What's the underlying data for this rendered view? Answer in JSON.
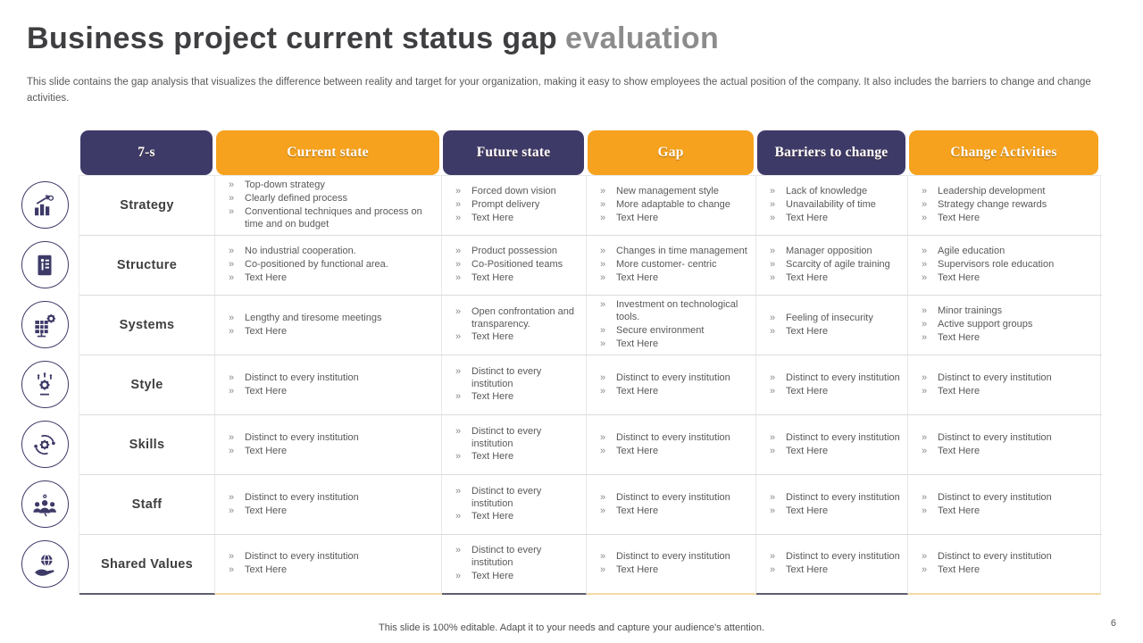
{
  "slide": {
    "title_main": "Business project current status gap",
    "title_accent": "evaluation",
    "subtitle": "This slide contains the gap analysis that visualizes the difference between reality and target for your organization, making it easy to show employees the actual position of the company. It also includes the barriers to change and change activities.",
    "footer": "This slide is 100% editable. Adapt it to your needs and capture your audience's attention.",
    "page_number": "6"
  },
  "colors": {
    "purple": "#3E3A68",
    "orange": "#F6A21E",
    "title": "#3F3F42",
    "title_accent": "#8C8C8C",
    "body_text": "#595959",
    "underline_purple": "#5E5E70",
    "underline_orange": "#F6D9A4"
  },
  "table": {
    "columns": [
      {
        "label": "7-s",
        "tone": "purple"
      },
      {
        "label": "Current state",
        "tone": "orange"
      },
      {
        "label": "Future state",
        "tone": "purple"
      },
      {
        "label": "Gap",
        "tone": "orange"
      },
      {
        "label": "Barriers to change",
        "tone": "purple"
      },
      {
        "label": "Change Activities",
        "tone": "orange"
      }
    ],
    "rows": [
      {
        "label": "Strategy",
        "icon": "growth-chart-icon",
        "cells": [
          [
            "Top-down strategy",
            "Clearly defined process",
            "Conventional techniques and process on time and on budget"
          ],
          [
            "Forced down vision",
            "Prompt delivery",
            "Text Here"
          ],
          [
            "New management style",
            "More adaptable to change",
            "Text Here"
          ],
          [
            "Lack of knowledge",
            "Unavailability of time",
            "Text Here"
          ],
          [
            "Leadership development",
            "Strategy change rewards",
            "Text Here"
          ]
        ]
      },
      {
        "label": "Structure",
        "icon": "document-info-icon",
        "cells": [
          [
            "No industrial cooperation.",
            "Co-positioned by functional area.",
            "Text Here"
          ],
          [
            "Product possession",
            "Co-Positioned teams",
            "Text Here"
          ],
          [
            "Changes in time management",
            "More customer- centric",
            "Text Here"
          ],
          [
            "Manager opposition",
            "Scarcity of agile training",
            "Text Here"
          ],
          [
            "Agile education",
            "Supervisors role education",
            "Text Here"
          ]
        ]
      },
      {
        "label": "Systems",
        "icon": "server-gear-icon",
        "cells": [
          [
            "Lengthy and tiresome meetings",
            "Text Here"
          ],
          [
            "Open confrontation and transparency.",
            "Text Here"
          ],
          [
            "Investment on technological tools.",
            "Secure environment",
            "Text Here"
          ],
          [
            "Feeling of insecurity",
            "Text Here"
          ],
          [
            "Minor trainings",
            "Active support groups",
            "Text Here"
          ]
        ]
      },
      {
        "label": "Style",
        "icon": "creative-mind-icon",
        "cells": [
          [
            "Distinct to every institution",
            "Text Here"
          ],
          [
            "Distinct to every institution",
            "Text Here"
          ],
          [
            "Distinct to every institution",
            "Text Here"
          ],
          [
            "Distinct to every institution",
            "Text Here"
          ],
          [
            "Distinct to every institution",
            "Text Here"
          ]
        ]
      },
      {
        "label": "Skills",
        "icon": "process-gear-icon",
        "cells": [
          [
            "Distinct to every institution",
            "Text Here"
          ],
          [
            "Distinct to every institution",
            "Text Here"
          ],
          [
            "Distinct to every institution",
            "Text Here"
          ],
          [
            "Distinct to every institution",
            "Text Here"
          ],
          [
            "Distinct to every institution",
            "Text Here"
          ]
        ]
      },
      {
        "label": "Staff",
        "icon": "team-icon",
        "cells": [
          [
            "Distinct to every institution",
            "Text Here"
          ],
          [
            "Distinct to every institution",
            "Text Here"
          ],
          [
            "Distinct to every institution",
            "Text Here"
          ],
          [
            "Distinct to every institution",
            "Text Here"
          ],
          [
            "Distinct to every institution",
            "Text Here"
          ]
        ]
      },
      {
        "label": "Shared Values",
        "icon": "hand-globe-icon",
        "cells": [
          [
            "Distinct to every institution",
            "Text Here"
          ],
          [
            "Distinct to every institution",
            "Text Here"
          ],
          [
            "Distinct to every institution",
            "Text Here"
          ],
          [
            "Distinct to every institution",
            "Text Here"
          ],
          [
            "Distinct to every institution",
            "Text Here"
          ]
        ]
      }
    ]
  }
}
